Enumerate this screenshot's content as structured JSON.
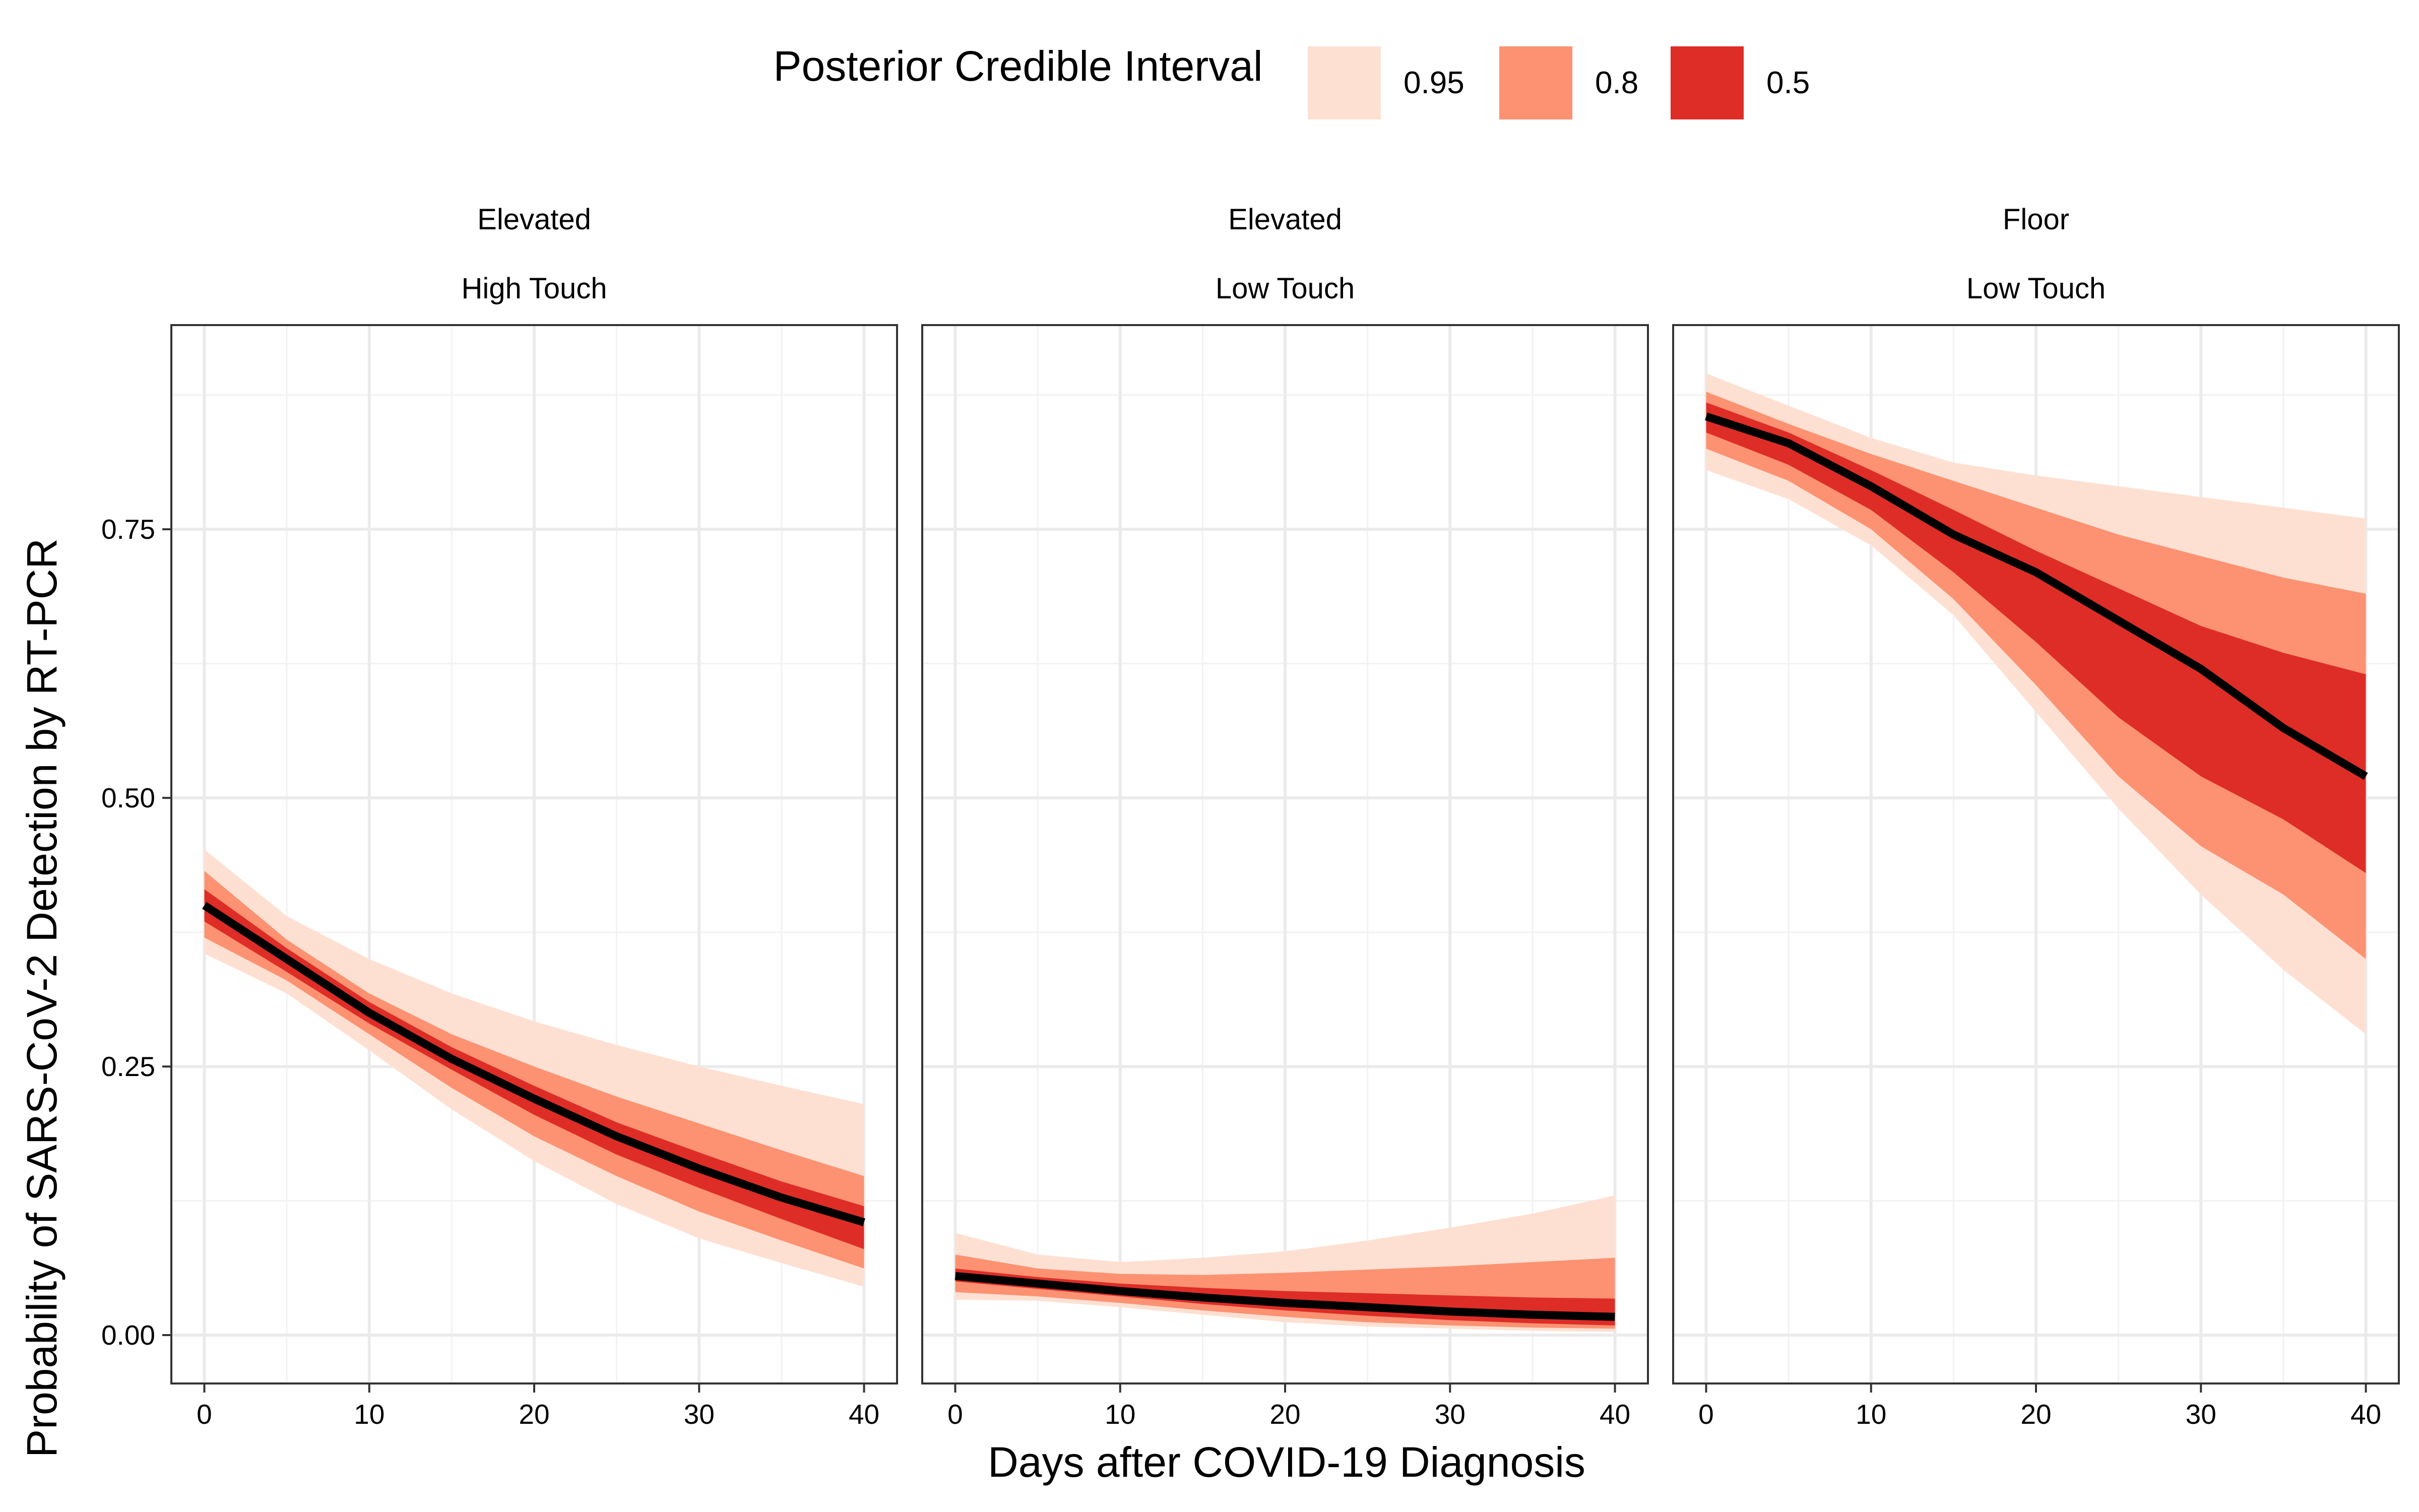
{
  "chart_data": {
    "type": "area",
    "xlabel": "Days after COVID-19 Diagnosis",
    "ylabel": "Probability of SARS-CoV-2 Detection by RT-PCR",
    "xlim": [
      -2,
      42
    ],
    "ylim": [
      -0.045,
      0.94
    ],
    "x_ticks": [
      0,
      10,
      20,
      30,
      40
    ],
    "x_tick_labels": [
      "0",
      "10",
      "20",
      "30",
      "40"
    ],
    "y_ticks": [
      0,
      0.25,
      0.5,
      0.75
    ],
    "y_tick_labels": [
      "0.00",
      "0.25",
      "0.50",
      "0.75"
    ],
    "grid": true,
    "legend": {
      "position": "top",
      "title": "Posterior Credible Interval",
      "entries": [
        {
          "label": "0.95",
          "color": "#FEE0D2"
        },
        {
          "label": "0.8",
          "color": "#FC9272"
        },
        {
          "label": "0.5",
          "color": "#DE2D26"
        }
      ]
    },
    "median_line_color": "#000000",
    "x": [
      0,
      5,
      10,
      15,
      20,
      25,
      30,
      35,
      40
    ],
    "panels": [
      {
        "strip": [
          "Elevated",
          "High Touch"
        ],
        "median": [
          0.4,
          0.35,
          0.3,
          0.257,
          0.22,
          0.185,
          0.155,
          0.128,
          0.105
        ],
        "ci50": {
          "lower": [
            0.385,
            0.338,
            0.29,
            0.247,
            0.205,
            0.168,
            0.137,
            0.108,
            0.08
          ],
          "upper": [
            0.415,
            0.36,
            0.31,
            0.268,
            0.232,
            0.198,
            0.17,
            0.143,
            0.12
          ]
        },
        "ci80": {
          "lower": [
            0.37,
            0.33,
            0.28,
            0.23,
            0.185,
            0.148,
            0.115,
            0.088,
            0.062
          ],
          "upper": [
            0.432,
            0.368,
            0.318,
            0.28,
            0.25,
            0.222,
            0.197,
            0.172,
            0.148
          ]
        },
        "ci95": {
          "lower": [
            0.355,
            0.318,
            0.265,
            0.21,
            0.162,
            0.122,
            0.09,
            0.067,
            0.045
          ],
          "upper": [
            0.452,
            0.39,
            0.35,
            0.318,
            0.292,
            0.27,
            0.25,
            0.232,
            0.215
          ]
        }
      },
      {
        "strip": [
          "Elevated",
          "Low Touch"
        ],
        "median": [
          0.055,
          0.048,
          0.041,
          0.035,
          0.03,
          0.026,
          0.022,
          0.019,
          0.017
        ],
        "ci50": {
          "lower": [
            0.05,
            0.043,
            0.036,
            0.029,
            0.023,
            0.018,
            0.014,
            0.011,
            0.009
          ],
          "upper": [
            0.062,
            0.054,
            0.048,
            0.044,
            0.041,
            0.039,
            0.037,
            0.035,
            0.034
          ]
        },
        "ci80": {
          "lower": [
            0.04,
            0.036,
            0.03,
            0.023,
            0.017,
            0.012,
            0.009,
            0.007,
            0.006
          ],
          "upper": [
            0.075,
            0.062,
            0.057,
            0.056,
            0.058,
            0.061,
            0.064,
            0.068,
            0.072
          ]
        },
        "ci95": {
          "lower": [
            0.033,
            0.032,
            0.026,
            0.019,
            0.012,
            0.008,
            0.006,
            0.004,
            0.003
          ],
          "upper": [
            0.095,
            0.075,
            0.068,
            0.072,
            0.078,
            0.088,
            0.1,
            0.113,
            0.13
          ]
        }
      },
      {
        "strip": [
          "Floor",
          "Low Touch"
        ],
        "median": [
          0.855,
          0.83,
          0.79,
          0.745,
          0.71,
          0.665,
          0.62,
          0.565,
          0.52
        ],
        "ci50": {
          "lower": [
            0.84,
            0.81,
            0.768,
            0.71,
            0.645,
            0.575,
            0.52,
            0.48,
            0.43
          ],
          "upper": [
            0.868,
            0.84,
            0.805,
            0.768,
            0.73,
            0.695,
            0.66,
            0.635,
            0.615
          ]
        },
        "ci80": {
          "lower": [
            0.825,
            0.795,
            0.75,
            0.685,
            0.605,
            0.52,
            0.455,
            0.41,
            0.35
          ],
          "upper": [
            0.878,
            0.848,
            0.82,
            0.795,
            0.77,
            0.745,
            0.725,
            0.705,
            0.69
          ]
        },
        "ci95": {
          "lower": [
            0.805,
            0.778,
            0.735,
            0.67,
            0.58,
            0.49,
            0.41,
            0.34,
            0.28
          ],
          "upper": [
            0.895,
            0.865,
            0.835,
            0.812,
            0.8,
            0.79,
            0.78,
            0.77,
            0.76
          ]
        }
      }
    ]
  }
}
